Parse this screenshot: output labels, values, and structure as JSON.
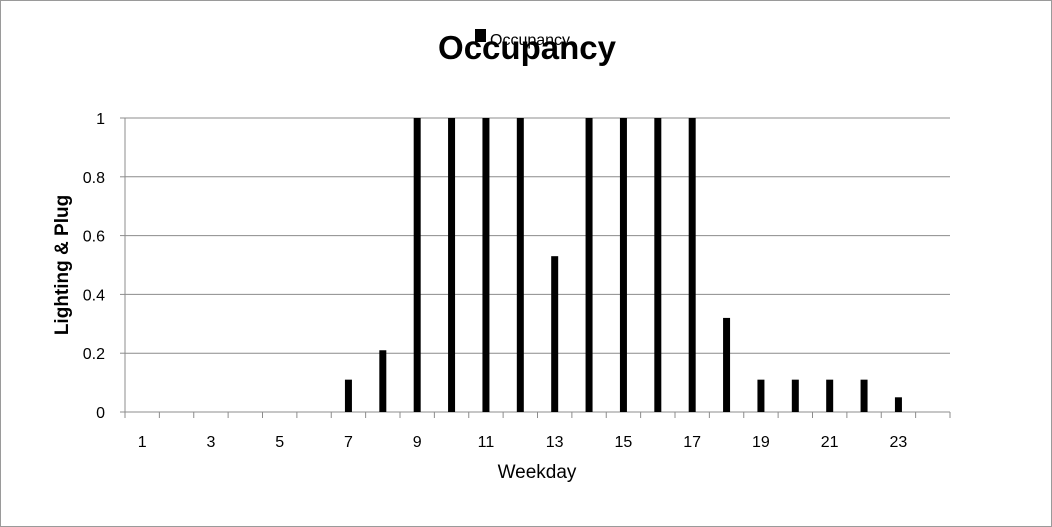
{
  "chart_data": {
    "type": "bar",
    "title": "Occupancy",
    "xlabel": "Weekday",
    "ylabel": "Lighting & Plug",
    "legend": {
      "entries": [
        "Occupancy"
      ],
      "placement": "top-center"
    },
    "series": [
      {
        "name": "Occupancy",
        "color": "#000000",
        "values": [
          0,
          0,
          0,
          0,
          0,
          0,
          0.11,
          0.21,
          1,
          1,
          1,
          1,
          0.53,
          1,
          1,
          1,
          1,
          0.32,
          0.11,
          0.11,
          0.11,
          0.11,
          0.05,
          0
        ]
      }
    ],
    "categories": [
      1,
      2,
      3,
      4,
      5,
      6,
      7,
      8,
      9,
      10,
      11,
      12,
      13,
      14,
      15,
      16,
      17,
      18,
      19,
      20,
      21,
      22,
      23,
      24
    ],
    "x_tick_labels": [
      "1",
      "3",
      "5",
      "7",
      "9",
      "11",
      "13",
      "15",
      "17",
      "19",
      "21",
      "23"
    ],
    "y_tick_labels": [
      "0",
      "0.2",
      "0.4",
      "0.6",
      "0.8",
      "1"
    ],
    "ylim": [
      0,
      1
    ],
    "grid": "horizontal"
  }
}
